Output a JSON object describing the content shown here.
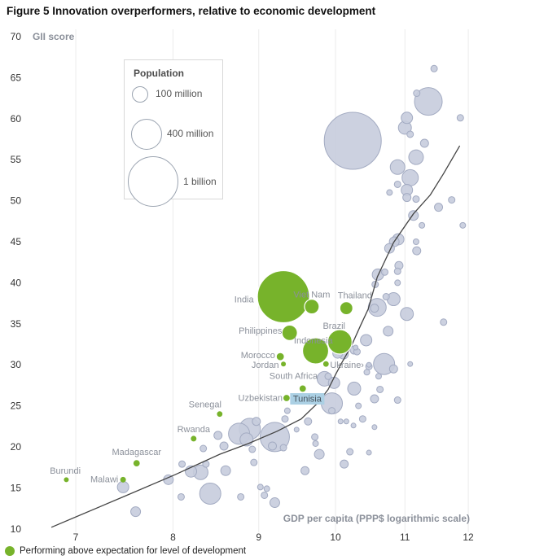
{
  "title": "Figure 5 Innovation overperformers, relative to economic development",
  "legend": {
    "title": "Population",
    "items": [
      {
        "label": "100 million",
        "r": 9
      },
      {
        "label": "400 million",
        "r": 18
      },
      {
        "label": "1 billion",
        "r": 30
      }
    ]
  },
  "footer": {
    "label": "Performing above expectation for level of development"
  },
  "colors": {
    "green": "#77b32b",
    "gray_fill": "#c7ccdd",
    "gray_stroke": "#a3abc2",
    "grid": "#ebebeb",
    "trend": "#444444",
    "country_label": "#8b909a",
    "axis_text": "#333333",
    "axis_label": "#8b909a",
    "highlight_bg": "#abd0e4",
    "highlight_text": "#47525c"
  },
  "chart_data": {
    "type": "scatter",
    "title": "Figure 5 Innovation overperformers, relative to economic development",
    "xlabel": "GDP per capita (PPP$ logarithmic scale)",
    "ylabel": "GII score",
    "x_ticks": [
      7,
      8,
      9,
      10,
      11,
      12
    ],
    "x_scale": "log",
    "y_min": 10,
    "y_max": 70,
    "y_tick_step": 5,
    "trend_line": [
      [
        6.77,
        10.2
      ],
      [
        7.46,
        13.85
      ],
      [
        8.02,
        16.6
      ],
      [
        8.53,
        19.1
      ],
      [
        8.87,
        20.4
      ],
      [
        9.23,
        21.9
      ],
      [
        9.54,
        23.4
      ],
      [
        9.76,
        25.35
      ],
      [
        9.9,
        27.0
      ],
      [
        10.0,
        28.8
      ],
      [
        10.09,
        30.3
      ],
      [
        10.22,
        32.3
      ],
      [
        10.35,
        34.8
      ],
      [
        10.46,
        36.8
      ],
      [
        10.59,
        40.7
      ],
      [
        10.83,
        44.9
      ],
      [
        11.13,
        48.4
      ],
      [
        11.39,
        50.7
      ],
      [
        11.6,
        53.3
      ],
      [
        11.86,
        56.7
      ]
    ],
    "overperformers": [
      {
        "name": "India",
        "x": 9.31,
        "y": 38.3,
        "r": 32,
        "lx": 8.82,
        "ly": 38.0
      },
      {
        "name": "Viet Nam",
        "x": 9.68,
        "y": 37.1,
        "r": 9,
        "lx": 9.68,
        "ly": 38.6
      },
      {
        "name": "Thailand",
        "x": 10.15,
        "y": 36.9,
        "r": 8,
        "lx": 10.27,
        "ly": 38.5
      },
      {
        "name": "Philippines",
        "x": 9.39,
        "y": 33.9,
        "r": 9.5,
        "lx": 9.02,
        "ly": 34.2
      },
      {
        "name": "Brazil",
        "x": 10.06,
        "y": 32.8,
        "r": 15,
        "lx": 9.98,
        "ly": 34.8
      },
      {
        "name": "Indonesia",
        "x": 9.73,
        "y": 31.7,
        "r": 16,
        "lx": 9.7,
        "ly": 33.0
      },
      {
        "name": "Morocco",
        "x": 9.27,
        "y": 31.0,
        "r": 5,
        "lx": 8.99,
        "ly": 31.2
      },
      {
        "name": "Jordan",
        "x": 9.31,
        "y": 30.1,
        "r": 3,
        "lx": 9.08,
        "ly": 30.0
      },
      {
        "name": "Ukraine›",
        "x": 9.87,
        "y": 30.1,
        "r": 4,
        "lx": 10.16,
        "ly": 30.0
      },
      {
        "name": "South Africa",
        "x": 9.56,
        "y": 27.1,
        "r": 4.5,
        "lx": 9.44,
        "ly": 28.7
      },
      {
        "name": "Uzbekistan",
        "x": 9.35,
        "y": 25.95,
        "r": 4.5,
        "lx": 9.02,
        "ly": 26.0
      },
      {
        "name": "Tunisia",
        "x": 9.62,
        "y": 25.9,
        "r": 4,
        "lx": 9.62,
        "ly": 25.9,
        "highlight": true
      },
      {
        "name": "Senegal",
        "x": 8.53,
        "y": 24.0,
        "r": 4,
        "lx": 8.36,
        "ly": 25.2
      },
      {
        "name": "Rwanda",
        "x": 8.23,
        "y": 21.0,
        "r": 3.5,
        "lx": 8.23,
        "ly": 22.2
      },
      {
        "name": "Madagascar",
        "x": 7.61,
        "y": 18.0,
        "r": 4.5,
        "lx": 7.61,
        "ly": 19.4
      },
      {
        "name": "Malawi",
        "x": 7.47,
        "y": 16.0,
        "r": 3.5,
        "lx": 7.28,
        "ly": 16.1
      },
      {
        "name": "Burundi",
        "x": 6.91,
        "y": 16.0,
        "r": 3,
        "lx": 6.9,
        "ly": 17.1
      }
    ],
    "others": [
      [
        11.45,
        66.1,
        4
      ],
      [
        11.36,
        62.1,
        17
      ],
      [
        11.18,
        63.1,
        4
      ],
      [
        11.03,
        60.1,
        7
      ],
      [
        11.0,
        58.9,
        8
      ],
      [
        11.08,
        58.1,
        4
      ],
      [
        11.87,
        60.1,
        4
      ],
      [
        11.3,
        57,
        5
      ],
      [
        10.24,
        57.3,
        35
      ],
      [
        11.17,
        55.3,
        9
      ],
      [
        10.89,
        54.1,
        9
      ],
      [
        11.08,
        52.8,
        10
      ],
      [
        10.89,
        52,
        4
      ],
      [
        11.03,
        51.3,
        7
      ],
      [
        10.77,
        51,
        3.5
      ],
      [
        11.03,
        50.4,
        5
      ],
      [
        11.17,
        50.2,
        4
      ],
      [
        11.73,
        50.1,
        4
      ],
      [
        11.52,
        49.2,
        5
      ],
      [
        11.13,
        48.2,
        6
      ],
      [
        11.26,
        47,
        3.5
      ],
      [
        11.91,
        47,
        3.5
      ],
      [
        10.9,
        45.3,
        7
      ],
      [
        10.84,
        45.0,
        6
      ],
      [
        11.17,
        45,
        3.5
      ],
      [
        10.77,
        44.2,
        6
      ],
      [
        11.18,
        43.9,
        5
      ],
      [
        10.91,
        42.1,
        5
      ],
      [
        10.89,
        41.4,
        4
      ],
      [
        10.7,
        41.3,
        4
      ],
      [
        10.6,
        41,
        7
      ],
      [
        10.89,
        40,
        3.5
      ],
      [
        10.56,
        39.8,
        4
      ],
      [
        10.72,
        38.3,
        4
      ],
      [
        10.83,
        38,
        8
      ],
      [
        10.59,
        37,
        11
      ],
      [
        10.55,
        36.9,
        5
      ],
      [
        11.03,
        36.2,
        8
      ],
      [
        11.6,
        35.2,
        4
      ],
      [
        10.75,
        34.1,
        6
      ],
      [
        10.43,
        33,
        7
      ],
      [
        10.3,
        31.6,
        4
      ],
      [
        10.26,
        31.8,
        5
      ],
      [
        10.28,
        32.1,
        3
      ],
      [
        10.11,
        31.3,
        6
      ],
      [
        10.03,
        31.4,
        6
      ],
      [
        9.9,
        28.6,
        4
      ],
      [
        9.98,
        27.8,
        7
      ],
      [
        10.44,
        29.1,
        3.5
      ],
      [
        10.47,
        30.0,
        3
      ],
      [
        10.47,
        29.8,
        4
      ],
      [
        11.08,
        30.1,
        3
      ],
      [
        10.69,
        30.1,
        13
      ],
      [
        10.61,
        28.6,
        3.5
      ],
      [
        10.26,
        27.1,
        8
      ],
      [
        10.63,
        27,
        4
      ],
      [
        10.55,
        25.85,
        5
      ],
      [
        10.89,
        25.7,
        4
      ],
      [
        10.83,
        29.5,
        5
      ],
      [
        9.85,
        28.3,
        9
      ],
      [
        9.95,
        25.3,
        13
      ],
      [
        9.95,
        24.4,
        4
      ],
      [
        10.07,
        23.1,
        3
      ],
      [
        10.15,
        23.1,
        3
      ],
      [
        10.25,
        22.6,
        3
      ],
      [
        10.32,
        25,
        3.5
      ],
      [
        10.47,
        19.3,
        3
      ],
      [
        10.38,
        23.4,
        4
      ],
      [
        10.55,
        22.4,
        3
      ],
      [
        10.2,
        19.4,
        4
      ],
      [
        10.12,
        17.9,
        5
      ],
      [
        9.59,
        17.1,
        5
      ],
      [
        9.78,
        19.1,
        6
      ],
      [
        9.73,
        20.4,
        3.5
      ],
      [
        9.72,
        21.2,
        4
      ],
      [
        9.63,
        23.1,
        4.5
      ],
      [
        9.48,
        22.1,
        3
      ],
      [
        9.36,
        24.4,
        3.5
      ],
      [
        9.33,
        23.4,
        4
      ],
      [
        9.2,
        21.2,
        18
      ],
      [
        8.89,
        22.2,
        13
      ],
      [
        8.97,
        23.1,
        5
      ],
      [
        8.85,
        20.9,
        8
      ],
      [
        8.92,
        19.7,
        4
      ],
      [
        9.17,
        20.1,
        5
      ],
      [
        9.31,
        19.9,
        4
      ],
      [
        8.94,
        18.1,
        4
      ],
      [
        9.02,
        15.1,
        3.5
      ],
      [
        9.1,
        14.9,
        3.5
      ],
      [
        9.07,
        14.1,
        4
      ],
      [
        9.2,
        13.2,
        6
      ],
      [
        7.47,
        15.1,
        7
      ],
      [
        7.6,
        12.1,
        6
      ],
      [
        7.95,
        16,
        6
      ],
      [
        8.09,
        13.9,
        4
      ],
      [
        8.1,
        17.9,
        4
      ],
      [
        8.2,
        17,
        7
      ],
      [
        8.31,
        16.9,
        9
      ],
      [
        8.34,
        19.8,
        4
      ],
      [
        8.42,
        14.3,
        13
      ],
      [
        8.37,
        17.9,
        4
      ],
      [
        8.58,
        20.1,
        5
      ],
      [
        8.6,
        17.1,
        6
      ],
      [
        8.76,
        21.6,
        13
      ],
      [
        8.78,
        13.9,
        4
      ],
      [
        8.51,
        21.4,
        5
      ]
    ]
  }
}
